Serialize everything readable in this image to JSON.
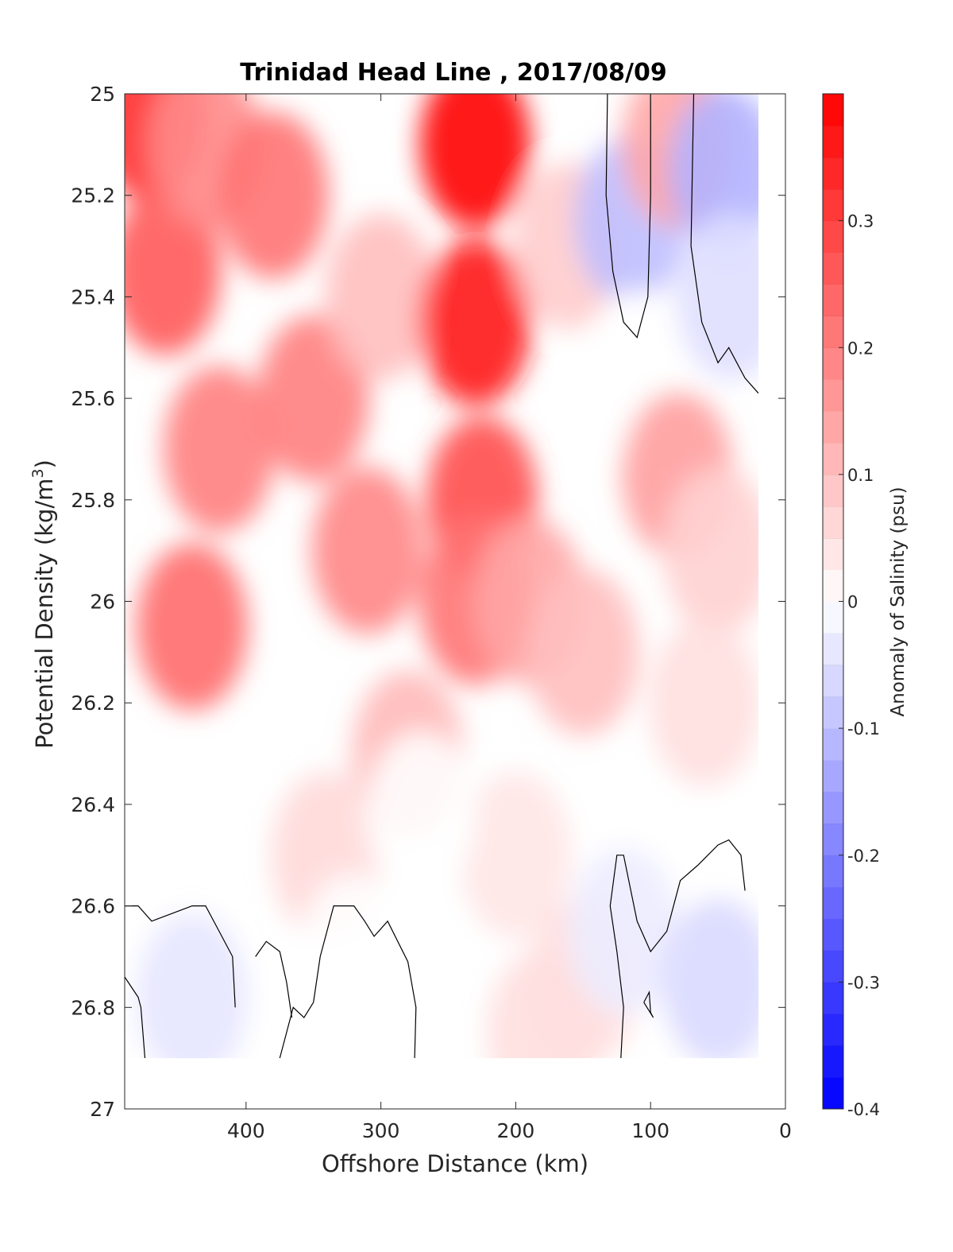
{
  "chart_data": {
    "type": "heatmap",
    "subtype": "filled-contour",
    "title": "Trinidad Head Line , 2017/08/09",
    "xlabel": "Offshore Distance (km)",
    "ylabel_main": "Potential Density (kg/m",
    "ylabel_sup": "3",
    "ylabel_close": ")",
    "colorbar_label": "Anomaly of Salinity (psu)",
    "x_axis": {
      "range": [
        490,
        0
      ],
      "reversed": true,
      "ticks": [
        400,
        300,
        200,
        100,
        0
      ],
      "tick_labels": [
        "400",
        "300",
        "200",
        "100",
        "0"
      ]
    },
    "y_axis": {
      "range": [
        25,
        27
      ],
      "reversed": true,
      "ticks": [
        25,
        25.2,
        25.4,
        25.6,
        25.8,
        26,
        26.2,
        26.4,
        26.6,
        26.8,
        27
      ],
      "tick_labels": [
        "25",
        "25.2",
        "25.4",
        "25.6",
        "25.8",
        "26",
        "26.2",
        "26.4",
        "26.6",
        "26.8",
        "27"
      ]
    },
    "colorbar": {
      "range": [
        -0.4,
        0.4
      ],
      "levels": 32,
      "ticks": [
        0.3,
        0.2,
        0.1,
        0,
        -0.1,
        -0.2,
        -0.3,
        -0.4
      ],
      "tick_labels": [
        "0.3",
        "0.2",
        "0.1",
        "0",
        "-0.1",
        "-0.2",
        "-0.3",
        "-0.4"
      ],
      "colormap": "blue-white-red",
      "low_color": "#0000ff",
      "mid_color": "#ffffff",
      "high_color": "#ff0000"
    },
    "data_extent": {
      "x": [
        490,
        20
      ],
      "y": [
        25,
        26.9
      ]
    },
    "grid": false,
    "features": [
      {
        "x": 470,
        "y": 25.05,
        "value": 0.33
      },
      {
        "x": 460,
        "y": 25.35,
        "value": 0.26
      },
      {
        "x": 430,
        "y": 25.1,
        "value": 0.18
      },
      {
        "x": 380,
        "y": 25.2,
        "value": 0.22
      },
      {
        "x": 440,
        "y": 26.05,
        "value": 0.23
      },
      {
        "x": 420,
        "y": 25.7,
        "value": 0.2
      },
      {
        "x": 350,
        "y": 25.6,
        "value": 0.2
      },
      {
        "x": 300,
        "y": 25.4,
        "value": 0.1
      },
      {
        "x": 310,
        "y": 25.9,
        "value": 0.19
      },
      {
        "x": 230,
        "y": 25.1,
        "value": 0.4
      },
      {
        "x": 230,
        "y": 25.45,
        "value": 0.36
      },
      {
        "x": 225,
        "y": 25.8,
        "value": 0.28
      },
      {
        "x": 230,
        "y": 26.0,
        "value": 0.22
      },
      {
        "x": 280,
        "y": 26.3,
        "value": 0.11
      },
      {
        "x": 190,
        "y": 26.0,
        "value": 0.14
      },
      {
        "x": 160,
        "y": 25.3,
        "value": 0.08
      },
      {
        "x": 150,
        "y": 26.1,
        "value": 0.1
      },
      {
        "x": 115,
        "y": 25.25,
        "value": -0.1
      },
      {
        "x": 110,
        "y": 25.55,
        "value": 0.0
      },
      {
        "x": 80,
        "y": 25.1,
        "value": 0.14
      },
      {
        "x": 80,
        "y": 25.75,
        "value": 0.15
      },
      {
        "x": 45,
        "y": 25.15,
        "value": -0.12
      },
      {
        "x": 40,
        "y": 25.4,
        "value": -0.05
      },
      {
        "x": 50,
        "y": 25.9,
        "value": 0.07
      },
      {
        "x": 60,
        "y": 26.2,
        "value": 0.05
      },
      {
        "x": 340,
        "y": 26.5,
        "value": 0.06
      },
      {
        "x": 200,
        "y": 26.5,
        "value": 0.04
      },
      {
        "x": 270,
        "y": 26.42,
        "value": 0.0
      },
      {
        "x": 440,
        "y": 26.78,
        "value": -0.04
      },
      {
        "x": 320,
        "y": 26.7,
        "value": 0.0
      },
      {
        "x": 180,
        "y": 26.85,
        "value": 0.05
      },
      {
        "x": 150,
        "y": 26.75,
        "value": 0.05
      },
      {
        "x": 120,
        "y": 26.65,
        "value": -0.03
      },
      {
        "x": 50,
        "y": 26.75,
        "value": -0.06
      }
    ],
    "zero_contours": [
      [
        [
          490,
          26.6
        ],
        [
          480,
          26.6
        ],
        [
          470,
          26.63
        ],
        [
          440,
          26.6
        ],
        [
          430,
          26.6
        ],
        [
          420,
          26.65
        ],
        [
          410,
          26.7
        ],
        [
          408,
          26.8
        ]
      ],
      [
        [
          490,
          26.74
        ],
        [
          480,
          26.78
        ],
        [
          478,
          26.8
        ],
        [
          475,
          26.9
        ]
      ],
      [
        [
          375,
          26.9
        ],
        [
          365,
          26.8
        ],
        [
          357,
          26.82
        ],
        [
          350,
          26.79
        ],
        [
          345,
          26.7
        ],
        [
          335,
          26.6
        ],
        [
          320,
          26.6
        ],
        [
          312,
          26.63
        ],
        [
          305,
          26.66
        ],
        [
          295,
          26.63
        ],
        [
          280,
          26.71
        ],
        [
          274,
          26.8
        ],
        [
          275,
          26.9
        ]
      ],
      [
        [
          393,
          26.7
        ],
        [
          385,
          26.67
        ],
        [
          375,
          26.69
        ],
        [
          370,
          26.75
        ],
        [
          366,
          26.82
        ]
      ],
      [
        [
          132,
          25.0
        ],
        [
          133,
          25.2
        ],
        [
          128,
          25.35
        ],
        [
          120,
          25.45
        ],
        [
          110,
          25.48
        ],
        [
          102,
          25.4
        ],
        [
          100,
          25.2
        ],
        [
          100,
          25.0
        ]
      ],
      [
        [
          68,
          25.0
        ],
        [
          70,
          25.3
        ],
        [
          62,
          25.45
        ],
        [
          50,
          25.53
        ],
        [
          42,
          25.5
        ],
        [
          30,
          25.56
        ],
        [
          20,
          25.59
        ]
      ],
      [
        [
          122,
          26.9
        ],
        [
          120,
          26.8
        ],
        [
          125,
          26.69
        ],
        [
          130,
          26.6
        ],
        [
          125,
          26.5
        ],
        [
          120,
          26.5
        ],
        [
          110,
          26.63
        ],
        [
          100,
          26.69
        ],
        [
          88,
          26.65
        ],
        [
          78,
          26.55
        ],
        [
          65,
          26.52
        ],
        [
          50,
          26.48
        ],
        [
          42,
          26.47
        ],
        [
          33,
          26.5
        ],
        [
          30,
          26.57
        ]
      ],
      [
        [
          105,
          26.79
        ],
        [
          101,
          26.77
        ],
        [
          100,
          26.81
        ],
        [
          98,
          26.82
        ],
        [
          105,
          26.79
        ]
      ]
    ]
  }
}
